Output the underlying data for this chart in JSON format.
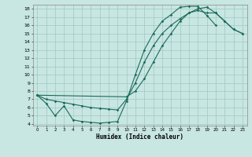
{
  "xlabel": "Humidex (Indice chaleur)",
  "bg_color": "#c8e6e2",
  "grid_color": "#a0c8c4",
  "line_color": "#1a6b5a",
  "xlim": [
    -0.5,
    23.5
  ],
  "ylim": [
    3.8,
    18.5
  ],
  "xticks": [
    0,
    1,
    2,
    3,
    4,
    5,
    6,
    7,
    8,
    9,
    10,
    11,
    12,
    13,
    14,
    15,
    16,
    17,
    18,
    19,
    20,
    21,
    22,
    23
  ],
  "yticks": [
    4,
    5,
    6,
    7,
    8,
    9,
    10,
    11,
    12,
    13,
    14,
    15,
    16,
    17,
    18
  ],
  "c1x": [
    0,
    1,
    2,
    3,
    4,
    5,
    6,
    7,
    8,
    9,
    10,
    11,
    12,
    13,
    14,
    15,
    16,
    17,
    18,
    19,
    20
  ],
  "c1y": [
    7.5,
    6.5,
    5.0,
    6.2,
    4.5,
    4.3,
    4.2,
    4.1,
    4.2,
    4.3,
    6.8,
    10.0,
    13.0,
    15.0,
    16.5,
    17.3,
    18.2,
    18.3,
    18.3,
    17.2,
    16.0
  ],
  "c2x": [
    0,
    1,
    2,
    3,
    4,
    5,
    6,
    7,
    8,
    9,
    10,
    11,
    12,
    13,
    14,
    15,
    16,
    17,
    18,
    19,
    20,
    21,
    22,
    23
  ],
  "c2y": [
    7.5,
    7.0,
    6.8,
    6.6,
    6.4,
    6.2,
    6.0,
    5.9,
    5.8,
    5.7,
    7.0,
    9.0,
    11.5,
    13.5,
    15.0,
    16.0,
    16.8,
    17.5,
    17.8,
    17.5,
    17.5,
    16.5,
    15.5,
    15.0
  ],
  "c3x": [
    0,
    10,
    11,
    12,
    13,
    14,
    15,
    16,
    17,
    18,
    19,
    20,
    21,
    22,
    23
  ],
  "c3y": [
    7.5,
    7.3,
    8.0,
    9.5,
    11.5,
    13.5,
    15.0,
    16.5,
    17.5,
    18.0,
    18.2,
    17.5,
    16.5,
    15.5,
    15.0
  ]
}
